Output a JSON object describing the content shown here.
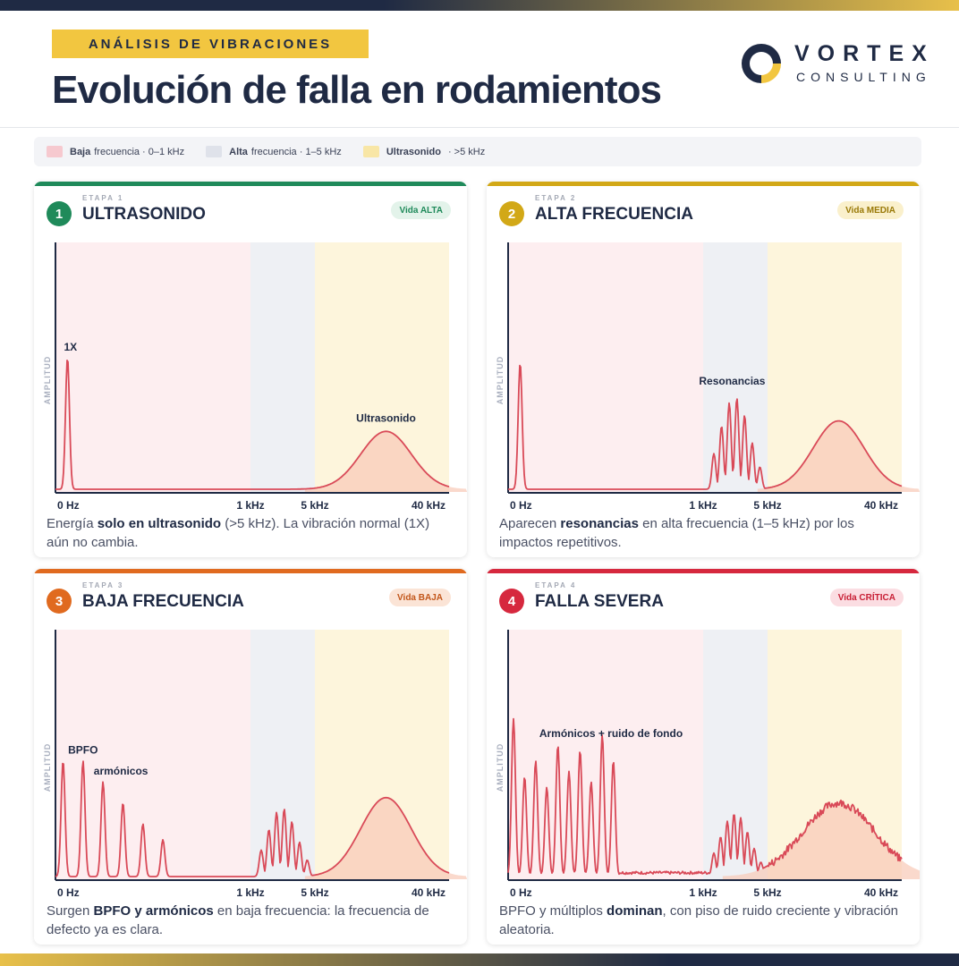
{
  "header": {
    "badge": "ANÁLISIS DE VIBRACIONES",
    "title": "Evolución de falla en rodamientos",
    "logo_word": "VORTEX",
    "logo_sub": "CONSULTING"
  },
  "legend": [
    {
      "bold": "Baja",
      "text": "frecuencia · 0–1 kHz",
      "color": "#f6c9cf"
    },
    {
      "bold": "Alta",
      "text": "frecuencia · 1–5 kHz",
      "color": "#dfe2ea"
    },
    {
      "bold": "Ultrasonido",
      "text": "· >5 kHz",
      "color": "#f8e6a6"
    }
  ],
  "colors": {
    "navy": "#1f2a44",
    "signal": "#d94a58",
    "low_band": "#fdeef0",
    "high_band": "#eef0f4",
    "ultra_band": "#fdf5dc",
    "stage1": "#1f8a5a",
    "stage2": "#d2a817",
    "stage3": "#e06a1f",
    "stage4": "#d6283e"
  },
  "chart_axis": {
    "y_label": "AMPLITUD",
    "ticks": [
      "0 Hz",
      "1 kHz",
      "5 kHz",
      "40 kHz"
    ]
  },
  "cards": [
    {
      "number": "1",
      "stage": "ETAPA 1",
      "title": "ULTRASONIDO",
      "life": "Vida ALTA",
      "life_bg": "#e3f3ea",
      "life_fg": "#1f8a5a",
      "accent": "#1f8a5a",
      "annotations": [
        "1X",
        "Ultrasonido"
      ],
      "desc": [
        {
          "t": "Energía "
        },
        {
          "t": "solo en ultrasonido",
          "b": true
        },
        {
          "t": " (>5 kHz). La vibración normal (1X) aún no cambia."
        }
      ],
      "chart_data": {
        "type": "line",
        "ylabel": "AMPLITUD",
        "x_ticks": [
          "0 Hz",
          "1 kHz",
          "5 kHz",
          "40 kHz"
        ],
        "bands": [
          "0–1 kHz",
          "1–5 kHz",
          ">5 kHz"
        ],
        "peaks": [
          {
            "label": "1X",
            "band": "low",
            "pos": 0.03,
            "height": 0.5
          }
        ],
        "resonance": null,
        "ultrasonic_hump": {
          "label": "Ultrasonido",
          "pos": 0.55,
          "height": 0.22,
          "width": 0.14
        },
        "noise_floor": 0
      }
    },
    {
      "number": "2",
      "stage": "ETAPA 2",
      "title": "ALTA FRECUENCIA",
      "life": "Vida MEDIA",
      "life_bg": "#faf0cc",
      "life_fg": "#9a7a08",
      "accent": "#d2a817",
      "annotations": [
        "Resonancias"
      ],
      "desc": [
        {
          "t": "Aparecen "
        },
        {
          "t": "resonancias",
          "b": true
        },
        {
          "t": " en alta frecuencia (1–5 kHz) por los impactos repetitivos."
        }
      ],
      "chart_data": {
        "type": "line",
        "ylabel": "AMPLITUD",
        "x_ticks": [
          "0 Hz",
          "1 kHz",
          "5 kHz",
          "40 kHz"
        ],
        "bands": [
          "0–1 kHz",
          "1–5 kHz",
          ">5 kHz"
        ],
        "peaks": [
          {
            "label": "",
            "band": "low",
            "pos": 0.03,
            "height": 0.48
          }
        ],
        "resonance": {
          "label": "Resonancias",
          "count": 7,
          "max_height": 0.35
        },
        "ultrasonic_hump": {
          "label": "",
          "pos": 0.55,
          "height": 0.26,
          "width": 0.14
        },
        "noise_floor": 0
      }
    },
    {
      "number": "3",
      "stage": "ETAPA 3",
      "title": "BAJA FRECUENCIA",
      "life": "Vida BAJA",
      "life_bg": "#fbe4d6",
      "life_fg": "#c2561a",
      "accent": "#e06a1f",
      "annotations": [
        "BPFO",
        "armónicos"
      ],
      "desc": [
        {
          "t": "Surgen "
        },
        {
          "t": "BPFO y armónicos",
          "b": true
        },
        {
          "t": " en baja frecuencia: la frecuencia de defecto ya es clara."
        }
      ],
      "chart_data": {
        "type": "line",
        "ylabel": "AMPLITUD",
        "x_ticks": [
          "0 Hz",
          "1 kHz",
          "5 kHz",
          "40 kHz"
        ],
        "bands": [
          "0–1 kHz",
          "1–5 kHz",
          ">5 kHz"
        ],
        "peaks": [
          {
            "label": "",
            "pos": 0.01,
            "height": 0.44
          },
          {
            "label": "BPFO",
            "pos": 0.1,
            "height": 0.44
          },
          {
            "label": "armónicos",
            "pos": 0.19,
            "height": 0.36
          },
          {
            "label": "",
            "pos": 0.28,
            "height": 0.28
          },
          {
            "label": "",
            "pos": 0.37,
            "height": 0.2
          },
          {
            "label": "",
            "pos": 0.46,
            "height": 0.14
          }
        ],
        "resonance": {
          "label": "",
          "count": 7,
          "max_height": 0.26
        },
        "ultrasonic_hump": {
          "label": "",
          "pos": 0.55,
          "height": 0.3,
          "width": 0.14
        },
        "noise_floor": 0
      }
    },
    {
      "number": "4",
      "stage": "ETAPA 4",
      "title": "FALLA SEVERA",
      "life": "Vida CRÍTICA",
      "life_bg": "#fbdde2",
      "life_fg": "#c81f35",
      "accent": "#d6283e",
      "annotations": [
        "Armónicos + ruido de fondo"
      ],
      "desc": [
        {
          "t": "BPFO y múltiplos "
        },
        {
          "t": "dominan",
          "b": true
        },
        {
          "t": ", con piso de ruido creciente y vibración aleatoria."
        }
      ],
      "chart_data": {
        "type": "line",
        "ylabel": "AMPLITUD",
        "x_ticks": [
          "0 Hz",
          "1 kHz",
          "5 kHz",
          "40 kHz"
        ],
        "bands": [
          "0–1 kHz",
          "1–5 kHz",
          ">5 kHz"
        ],
        "peaks": [
          {
            "label": "",
            "pos": 0.0,
            "height": 0.6
          },
          {
            "label": "",
            "pos": 0.05,
            "height": 0.38
          },
          {
            "label": "",
            "pos": 0.1,
            "height": 0.44
          },
          {
            "label": "",
            "pos": 0.15,
            "height": 0.34
          },
          {
            "label": "",
            "pos": 0.2,
            "height": 0.5
          },
          {
            "label": "",
            "pos": 0.25,
            "height": 0.4
          },
          {
            "label": "",
            "pos": 0.3,
            "height": 0.48
          },
          {
            "label": "",
            "pos": 0.35,
            "height": 0.36
          },
          {
            "label": "",
            "pos": 0.4,
            "height": 0.54
          },
          {
            "label": "",
            "pos": 0.45,
            "height": 0.44
          }
        ],
        "resonance": {
          "label": "",
          "count": 8,
          "max_height": 0.24
        },
        "ultrasonic_hump": {
          "label": "",
          "pos": 0.55,
          "height": 0.28,
          "width": 0.2
        },
        "noise_floor": 0.12
      }
    }
  ]
}
